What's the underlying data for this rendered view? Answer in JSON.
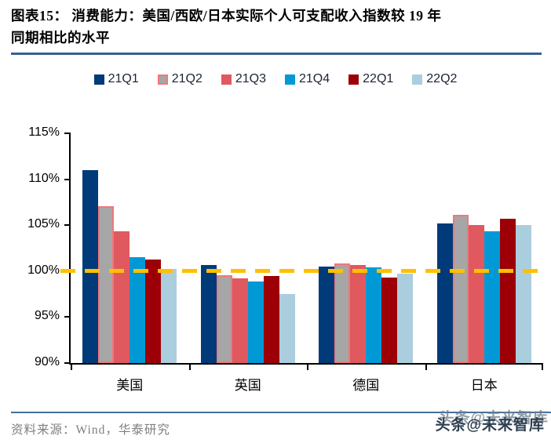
{
  "header": {
    "figure_title_line1": "图表15：  消费能力：美国/西欧/日本实际个人可支配收入指数较 19 年",
    "figure_title_line2": "同期相比的水平"
  },
  "chart_data": {
    "type": "bar",
    "title": "消费能力：美国/西欧/日本实际个人可支配收入指数较19年同期相比的水平",
    "categories": [
      "美国",
      "英国",
      "德国",
      "日本"
    ],
    "series": [
      {
        "name": "21Q1",
        "color": "#003A78",
        "values": [
          111.0,
          100.7,
          100.5,
          105.2
        ]
      },
      {
        "name": "21Q2",
        "color": "#A6A6A6",
        "border_color": "#F4767B",
        "values": [
          107.1,
          99.6,
          100.8,
          106.1
        ]
      },
      {
        "name": "21Q3",
        "color": "#E0595F",
        "values": [
          104.3,
          99.2,
          100.7,
          105.0
        ]
      },
      {
        "name": "21Q4",
        "color": "#0099D6",
        "values": [
          101.5,
          98.9,
          100.4,
          104.3
        ]
      },
      {
        "name": "22Q1",
        "color": "#9C0006",
        "values": [
          101.3,
          99.5,
          99.3,
          105.7
        ]
      },
      {
        "name": "22Q2",
        "color": "#ABCEDF",
        "values": [
          100.2,
          97.5,
          99.7,
          105.0
        ]
      }
    ],
    "ylim": [
      90,
      115
    ],
    "ytick_labels": [
      "115%",
      "110%",
      "105%",
      "100%",
      "95%",
      "90%"
    ],
    "ytick_values": [
      115,
      110,
      105,
      100,
      95,
      90
    ],
    "reference_line": {
      "value": 100,
      "color": "#FFC000",
      "style": "dashed"
    },
    "legend_position": "top",
    "grid": false
  },
  "footer": {
    "source_label": "资料来源：Wind，华泰研究",
    "watermark": "头条@未来智库"
  }
}
